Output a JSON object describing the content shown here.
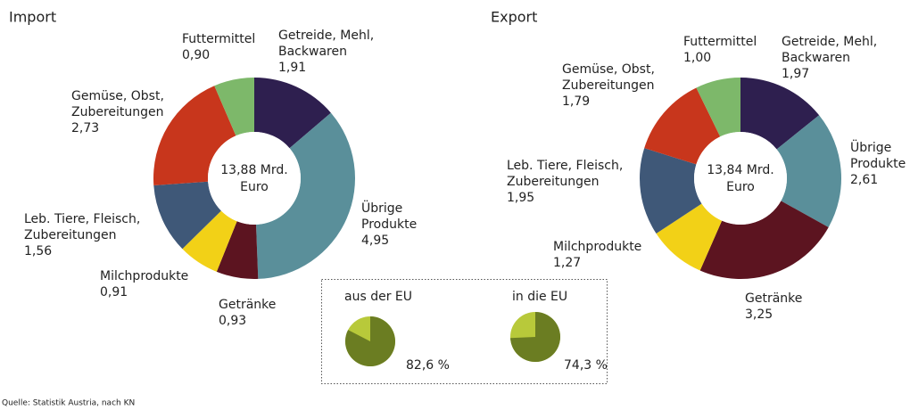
{
  "chart_data": [
    {
      "type": "pie",
      "donut": true,
      "title": "Import",
      "categories": [
        [
          "Getreide, Mehl,",
          "Backwaren"
        ],
        [
          "Übrige",
          "Produkte"
        ],
        [
          "Getränke"
        ],
        [
          "Milchprodukte"
        ],
        [
          "Leb. Tiere, Fleisch,",
          "Zubereitungen"
        ],
        [
          "Gemüse, Obst,",
          "Zubereitungen"
        ],
        [
          "Futtermittel"
        ]
      ],
      "values": [
        1.91,
        4.95,
        0.93,
        0.91,
        1.56,
        2.73,
        0.9
      ],
      "value_labels": [
        "1,91",
        "4,95",
        "0,93",
        "0,91",
        "1,56",
        "2,73",
        "0,90"
      ],
      "colors": [
        "#2e1f4f",
        "#5a8f9a",
        "#5c1420",
        "#f2d117",
        "#3f5878",
        "#c8361c",
        "#7db86a"
      ],
      "center_text": [
        "13,88 Mrd.",
        "Euro"
      ]
    },
    {
      "type": "pie",
      "donut": true,
      "title": "Export",
      "categories": [
        [
          "Getreide, Mehl,",
          "Backwaren"
        ],
        [
          "Übrige",
          "Produkte"
        ],
        [
          "Getränke"
        ],
        [
          "Milchprodukte"
        ],
        [
          "Leb. Tiere, Fleisch,",
          "Zubereitungen"
        ],
        [
          "Gemüse, Obst,",
          "Zubereitungen"
        ],
        [
          "Futtermittel"
        ]
      ],
      "values": [
        1.97,
        2.61,
        3.25,
        1.27,
        1.95,
        1.79,
        1.0
      ],
      "value_labels": [
        "1,97",
        "2,61",
        "3,25",
        "1,27",
        "1,95",
        "1,79",
        "1,00"
      ],
      "colors": [
        "#2e1f4f",
        "#5a8f9a",
        "#5c1420",
        "#f2d117",
        "#3f5878",
        "#c8361c",
        "#7db86a"
      ],
      "center_text": [
        "13,84 Mrd.",
        "Euro"
      ]
    },
    {
      "type": "pie",
      "title": "aus der EU",
      "values": [
        82.6
      ],
      "value_labels": [
        "82,6 %"
      ],
      "color": "#6b7d22",
      "rest_color": "#b8c93a"
    },
    {
      "type": "pie",
      "title": "in die EU",
      "values": [
        74.3
      ],
      "value_labels": [
        "74,3 %"
      ],
      "color": "#6b7d22",
      "rest_color": "#b8c93a"
    }
  ],
  "source": "Quelle: Statistik Austria, nach KN"
}
